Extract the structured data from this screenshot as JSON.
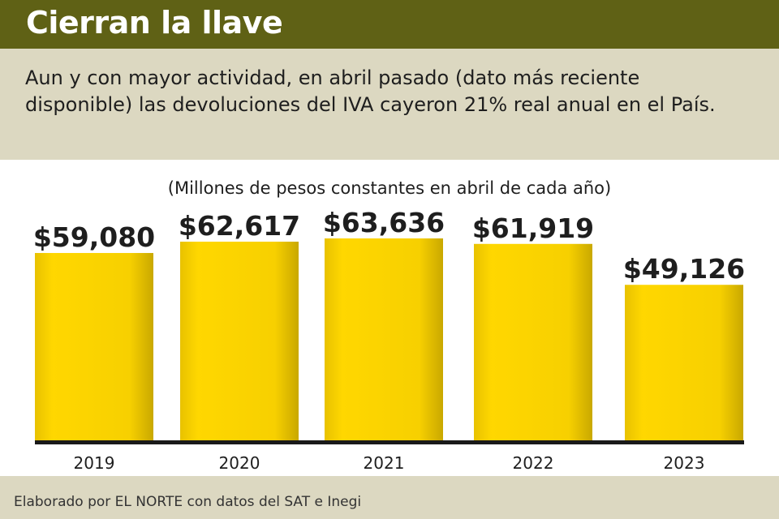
{
  "title": "Cierran la llave",
  "subtitle": "Aun y con mayor actividad, en abril pasado (dato más reciente disponible) las devoluciones del IVA cayeron 21% real anual en el País.",
  "source": "Elaborado por EL NORTE con datos del SAT e Inegi",
  "colors": {
    "header": "#5f6115",
    "band": "#dcd8c1",
    "bar": "#f5cf00",
    "axis": "#1a1a1a"
  },
  "chart_data": {
    "type": "bar",
    "title": "Cierran la llave",
    "units_label": "(Millones de pesos constantes en abril de cada año)",
    "categories": [
      "2019",
      "2020",
      "2021",
      "2022",
      "2023"
    ],
    "values": [
      59080,
      62617,
      63636,
      61919,
      49126
    ],
    "value_labels": [
      "$59,080",
      "$62,617",
      "$63,636",
      "$61,919",
      "$49,126"
    ],
    "xlabel": "",
    "ylabel": "",
    "ylim": [
      0,
      63636
    ],
    "grid": false
  }
}
